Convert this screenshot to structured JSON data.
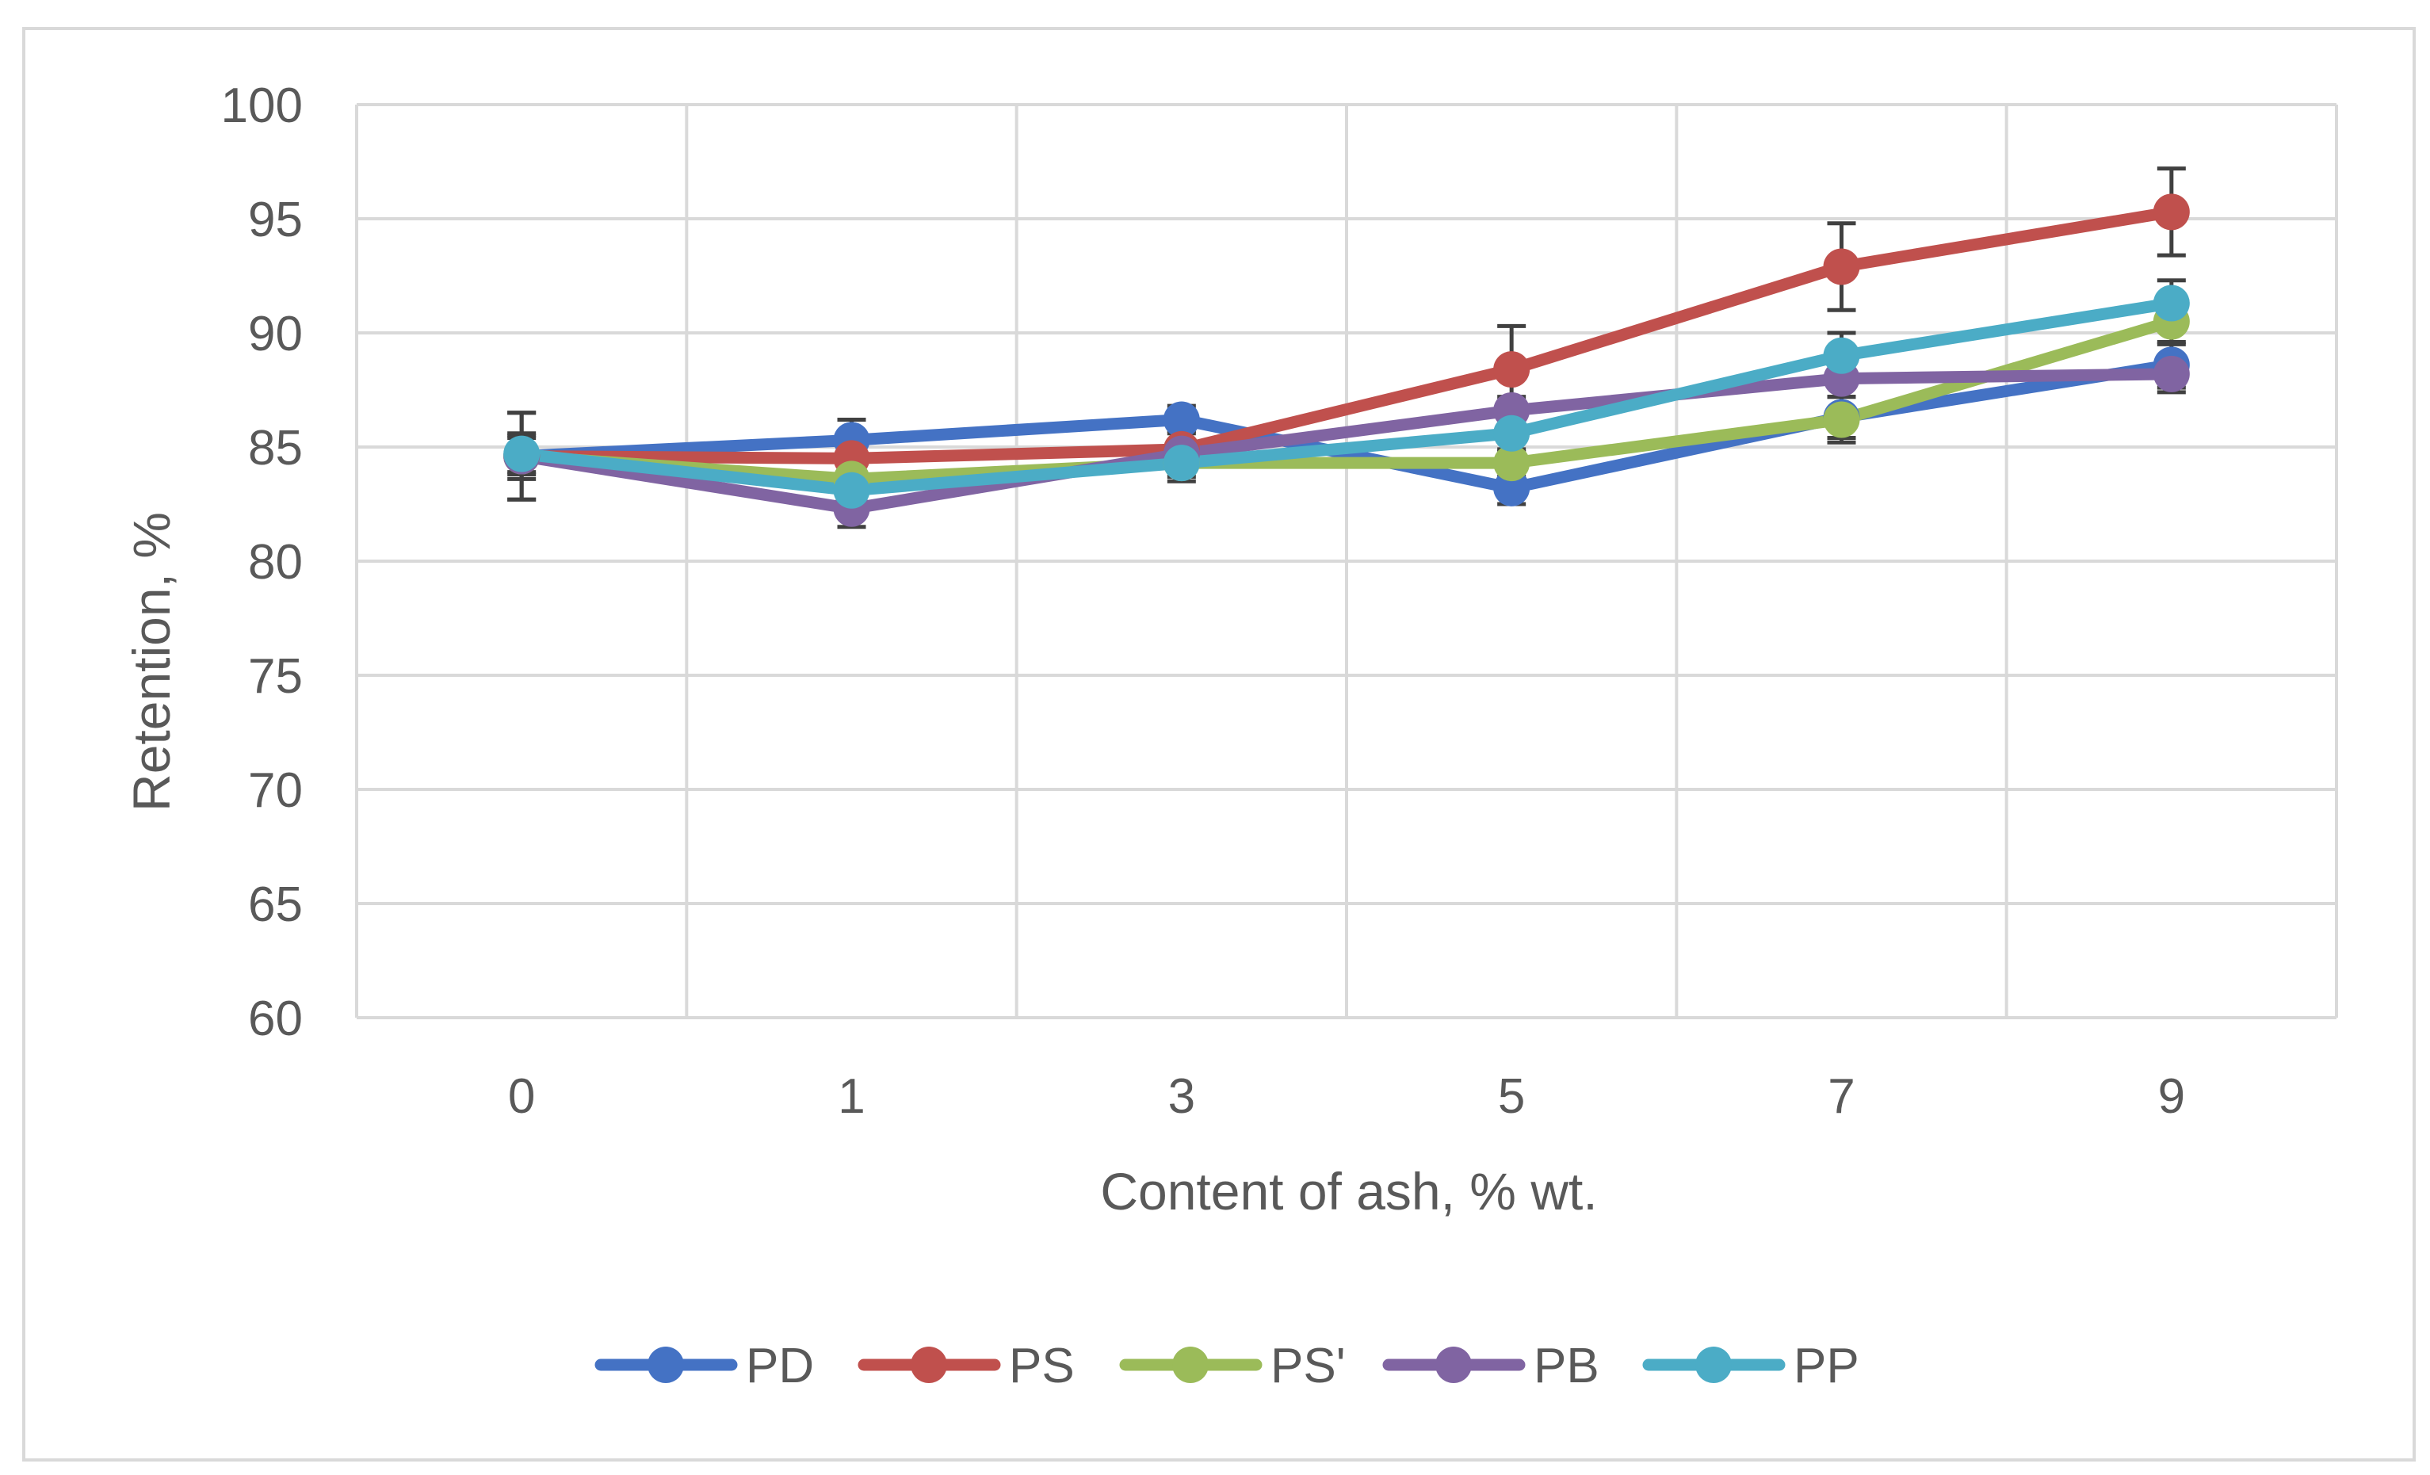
{
  "chart_data": {
    "type": "line",
    "xlabel": "Content of ash, % wt.",
    "ylabel": "Retention, %",
    "categories": [
      "0",
      "1",
      "3",
      "5",
      "7",
      "9"
    ],
    "ylim": [
      60,
      100
    ],
    "yticks": [
      60,
      65,
      70,
      75,
      80,
      85,
      90,
      95,
      100
    ],
    "grid": true,
    "legend_position": "bottom",
    "series": [
      {
        "name": "PD",
        "color": "#4472C4",
        "values": [
          84.6,
          85.3,
          86.2,
          83.2,
          86.3,
          88.6
        ],
        "errors": [
          1.9,
          0.9,
          0.6,
          0.7,
          0.9,
          1.0
        ]
      },
      {
        "name": "PS",
        "color": "#C0504D",
        "values": [
          84.6,
          84.5,
          84.9,
          88.4,
          92.9,
          95.3
        ],
        "errors": [
          1.9,
          0.9,
          0.8,
          1.9,
          1.9,
          1.9
        ]
      },
      {
        "name": "PS'",
        "color": "#9BBB59",
        "values": [
          84.6,
          83.6,
          84.3,
          84.3,
          86.2,
          90.5
        ],
        "errors": [
          1.0,
          0.6,
          0.6,
          0.6,
          1.0,
          1.0
        ]
      },
      {
        "name": "PB",
        "color": "#8064A2",
        "values": [
          84.6,
          82.3,
          84.7,
          86.6,
          88.0,
          88.2
        ],
        "errors": [
          0.8,
          0.8,
          0.6,
          0.6,
          0.8,
          0.8
        ]
      },
      {
        "name": "PP",
        "color": "#4BACC6",
        "values": [
          84.7,
          83.1,
          84.3,
          85.6,
          89.0,
          91.3
        ],
        "errors": [
          0.8,
          0.8,
          0.8,
          0.8,
          1.0,
          1.0
        ]
      }
    ]
  }
}
